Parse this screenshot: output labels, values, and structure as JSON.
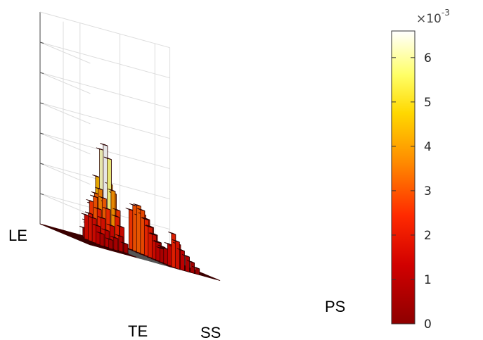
{
  "chart_data": {
    "type": "bar3d",
    "title": "",
    "axis_labels": {
      "le": "LE",
      "te": "TE",
      "ss": "SS",
      "ps": "PS"
    },
    "colorbar": {
      "colormap": "hot",
      "min": 0,
      "max": 6.6,
      "ticks": [
        "0",
        "1",
        "2",
        "3",
        "4",
        "5",
        "6"
      ],
      "exponent_base": "×10",
      "exponent_power": "-3"
    },
    "grid": true,
    "grid_shape": {
      "rows": 13,
      "cols": 26
    },
    "white_columns": [
      10,
      11,
      12,
      13,
      14,
      15
    ],
    "series": [
      {
        "row": 1,
        "col": 7,
        "value": 0.6
      },
      {
        "row": 1,
        "col": 8,
        "value": 1.4
      },
      {
        "row": 2,
        "col": 7,
        "value": 1.0
      },
      {
        "row": 2,
        "col": 8,
        "value": 2.4
      },
      {
        "row": 2,
        "col": 9,
        "value": 0.8
      },
      {
        "row": 3,
        "col": 6,
        "value": 1.2
      },
      {
        "row": 3,
        "col": 7,
        "value": 2.4
      },
      {
        "row": 3,
        "col": 8,
        "value": 4.3
      },
      {
        "row": 3,
        "col": 9,
        "value": 1.4
      },
      {
        "row": 4,
        "col": 5,
        "value": 1.6
      },
      {
        "row": 4,
        "col": 6,
        "value": 2.6
      },
      {
        "row": 4,
        "col": 7,
        "value": 3.2
      },
      {
        "row": 4,
        "col": 8,
        "value": 6.2
      },
      {
        "row": 4,
        "col": 9,
        "value": 2.8
      },
      {
        "row": 5,
        "col": 5,
        "value": 1.8
      },
      {
        "row": 5,
        "col": 6,
        "value": 3.0
      },
      {
        "row": 5,
        "col": 7,
        "value": 3.6
      },
      {
        "row": 5,
        "col": 8,
        "value": 6.6
      },
      {
        "row": 5,
        "col": 9,
        "value": 4.1
      },
      {
        "row": 6,
        "col": 5,
        "value": 1.6
      },
      {
        "row": 6,
        "col": 6,
        "value": 2.3
      },
      {
        "row": 6,
        "col": 7,
        "value": 3.1
      },
      {
        "row": 6,
        "col": 8,
        "value": 5.8
      },
      {
        "row": 6,
        "col": 9,
        "value": 3.6
      },
      {
        "row": 7,
        "col": 5,
        "value": 1.2
      },
      {
        "row": 7,
        "col": 6,
        "value": 1.8
      },
      {
        "row": 7,
        "col": 7,
        "value": 2.5
      },
      {
        "row": 7,
        "col": 8,
        "value": 3.8
      },
      {
        "row": 7,
        "col": 9,
        "value": 2.6
      },
      {
        "row": 8,
        "col": 5,
        "value": 0.8
      },
      {
        "row": 8,
        "col": 6,
        "value": 1.1
      },
      {
        "row": 8,
        "col": 7,
        "value": 1.5
      },
      {
        "row": 8,
        "col": 8,
        "value": 2.2
      },
      {
        "row": 8,
        "col": 9,
        "value": 1.6
      },
      {
        "row": 9,
        "col": 6,
        "value": 0.6
      },
      {
        "row": 9,
        "col": 7,
        "value": 0.8
      },
      {
        "row": 9,
        "col": 8,
        "value": 1.0
      },
      {
        "row": 9,
        "col": 9,
        "value": 0.6
      },
      {
        "row": 0,
        "col": 17,
        "value": 2.6
      },
      {
        "row": 0,
        "col": 18,
        "value": 2.6
      },
      {
        "row": 1,
        "col": 17,
        "value": 3.0
      },
      {
        "row": 1,
        "col": 18,
        "value": 2.4
      },
      {
        "row": 2,
        "col": 17,
        "value": 3.1
      },
      {
        "row": 2,
        "col": 18,
        "value": 2.6
      },
      {
        "row": 3,
        "col": 17,
        "value": 2.9
      },
      {
        "row": 3,
        "col": 18,
        "value": 2.4
      },
      {
        "row": 4,
        "col": 17,
        "value": 2.4
      },
      {
        "row": 4,
        "col": 18,
        "value": 2.0
      },
      {
        "row": 5,
        "col": 17,
        "value": 2.0
      },
      {
        "row": 5,
        "col": 18,
        "value": 1.6
      },
      {
        "row": 6,
        "col": 17,
        "value": 1.6
      },
      {
        "row": 6,
        "col": 18,
        "value": 1.2
      },
      {
        "row": 7,
        "col": 17,
        "value": 1.2
      },
      {
        "row": 7,
        "col": 18,
        "value": 1.0
      },
      {
        "row": 8,
        "col": 17,
        "value": 0.9
      },
      {
        "row": 8,
        "col": 18,
        "value": 0.9
      },
      {
        "row": 9,
        "col": 17,
        "value": 1.0
      },
      {
        "row": 9,
        "col": 18,
        "value": 1.0
      },
      {
        "row": 10,
        "col": 17,
        "value": 1.4
      },
      {
        "row": 10,
        "col": 18,
        "value": 1.3
      },
      {
        "row": 11,
        "col": 17,
        "value": 2.2
      },
      {
        "row": 11,
        "col": 18,
        "value": 1.6
      },
      {
        "row": 12,
        "col": 17,
        "value": 1.8
      },
      {
        "row": 12,
        "col": 18,
        "value": 1.3
      },
      {
        "row": 12,
        "col": 19,
        "value": 1.0
      },
      {
        "row": 12,
        "col": 20,
        "value": 0.7
      },
      {
        "row": 12,
        "col": 21,
        "value": 0.4
      }
    ]
  }
}
